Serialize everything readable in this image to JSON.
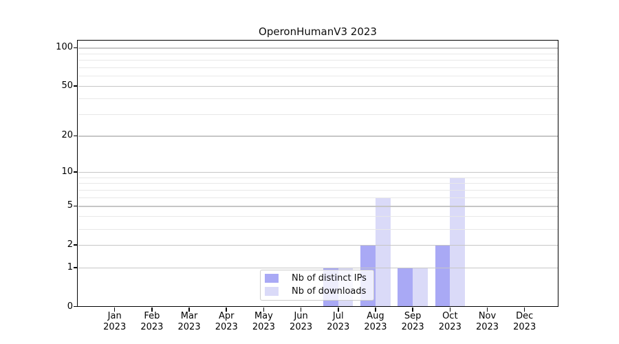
{
  "chart_data": {
    "type": "bar",
    "title": "OperonHumanV3 2023",
    "categories": [
      "Jan",
      "Feb",
      "Mar",
      "Apr",
      "May",
      "Jun",
      "Jul",
      "Aug",
      "Sep",
      "Oct",
      "Nov",
      "Dec"
    ],
    "year_label": "2023",
    "series": [
      {
        "name": "Nb of distinct IPs",
        "color": "#a9a9f5",
        "values": [
          0,
          0,
          0,
          0,
          0,
          0,
          1,
          2,
          1,
          2,
          0,
          0
        ]
      },
      {
        "name": "Nb of downloads",
        "color": "#dadaf8",
        "values": [
          0,
          0,
          0,
          0,
          0,
          0,
          1,
          6,
          1,
          9,
          0,
          0
        ]
      }
    ],
    "y_scale": "log10(1+v)",
    "ylim": [
      0,
      113
    ],
    "y_ticks": [
      0,
      1,
      2,
      5,
      10,
      20,
      50,
      100
    ],
    "y_minor_ticks": [
      3,
      4,
      6,
      7,
      8,
      9,
      30,
      40,
      60,
      70,
      80,
      90
    ],
    "grid": {
      "major_color": "#c6c6c6",
      "minor_color": "#e8e8e8"
    },
    "legend_position": "lower center",
    "axis_color": "#000000",
    "background_color": "#ffffff"
  }
}
